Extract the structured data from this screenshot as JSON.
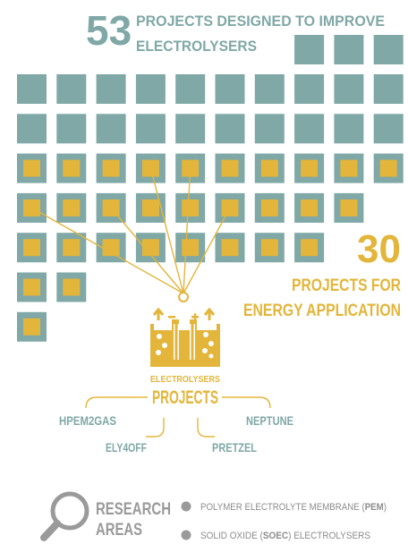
{
  "header": {
    "number": "53",
    "line1": "PROJECTS DESIGNED TO IMPROVE",
    "line2": "ELECTROLYSERS"
  },
  "highlight": {
    "number": "30",
    "line1": "PROJECTS FOR",
    "line2": "ENERGY APPLICATION"
  },
  "device": {
    "label_small": "ELECTROLYSERS",
    "label_big": "PROJECTS"
  },
  "projects": [
    "HPEM2GAS",
    "ELY4OFF",
    "PRETZEL",
    "NEPTUNE"
  ],
  "research": {
    "title_line1": "RESEARCH",
    "title_line2": "AREAS",
    "areas": [
      {
        "text_pre": "POLYMER ELECTROLYTE MEMBRANE (",
        "bold": "PEM",
        "text_post": ")"
      },
      {
        "text_pre": "SOLID OXIDE (",
        "bold": "SOEC",
        "text_post": ") ELECTROLYSERS"
      }
    ]
  },
  "grid": {
    "total": 53,
    "highlighted": 30,
    "highlighted_connected": 5
  },
  "colors": {
    "teal": "#7fa8a6",
    "gold": "#e3b53a",
    "grey_text": "#8c8c8c",
    "bullet": "#9a9a9a"
  },
  "icons": {
    "search": "magnifier-icon",
    "device": "electrolyser-icon"
  }
}
